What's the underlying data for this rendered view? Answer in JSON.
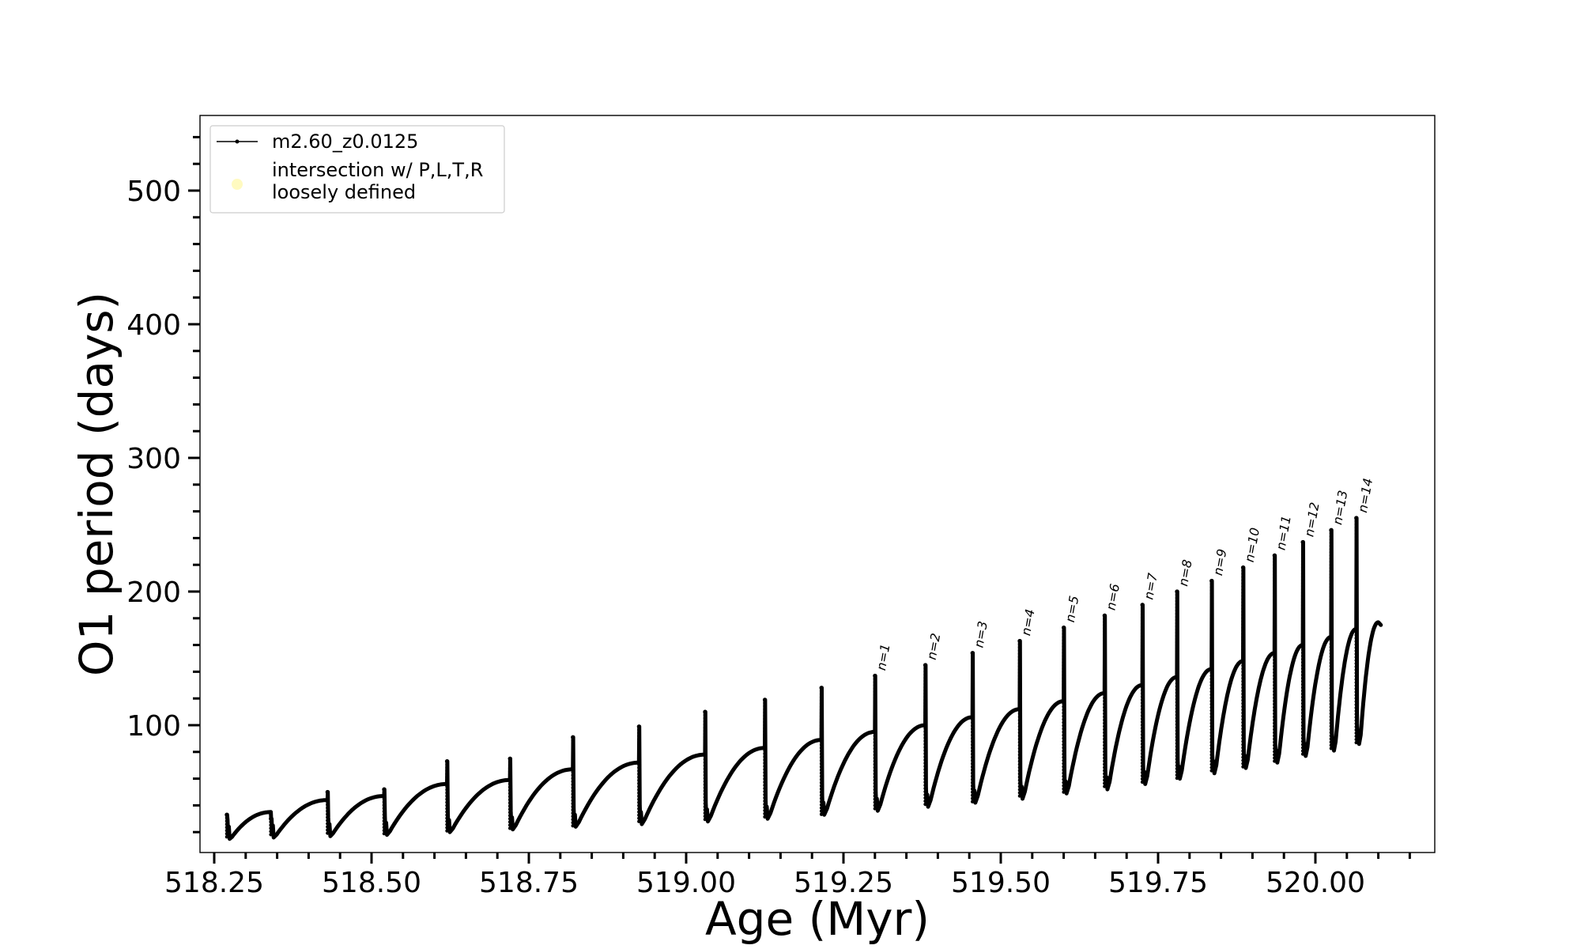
{
  "chart_data": {
    "type": "line",
    "title": "",
    "xlabel": "Age (Myr)",
    "ylabel": "O1 period (days)",
    "xlim": [
      518.2,
      520.17
    ],
    "ylim": [
      10,
      553
    ],
    "x_ticks": [
      518.25,
      518.5,
      518.75,
      519.0,
      519.25,
      519.5,
      519.75,
      520.0
    ],
    "x_tick_labels": [
      "518.25",
      "518.50",
      "518.75",
      "519.00",
      "519.25",
      "519.50",
      "519.75",
      "520.00"
    ],
    "x_minor_step": 0.05,
    "y_ticks": [
      100,
      200,
      300,
      400,
      500
    ],
    "y_tick_labels": [
      "100",
      "200",
      "300",
      "400",
      "500"
    ],
    "y_minor_step": 20,
    "grid": false,
    "legend_position": "top-left",
    "legend": [
      {
        "label": "m2.60_z0.0125",
        "marker": "line-with-dot",
        "color": "#000000"
      },
      {
        "label_lines": [
          "intersection w/ P,L,T,R",
          "loosely defined"
        ],
        "marker": "circle",
        "color": "#fffac0"
      }
    ],
    "series": [
      {
        "name": "m2.60_z0.0125",
        "color": "#000000",
        "cycles": [
          {
            "start": 518.27,
            "end": 518.34,
            "base": 15,
            "spike": 33,
            "plateau": 35,
            "label": ""
          },
          {
            "start": 518.34,
            "end": 518.43,
            "base": 16,
            "spike": 30,
            "plateau": 44,
            "label": ""
          },
          {
            "start": 518.43,
            "end": 518.52,
            "base": 17,
            "spike": 50,
            "plateau": 47,
            "label": ""
          },
          {
            "start": 518.52,
            "end": 518.62,
            "base": 18,
            "spike": 52,
            "plateau": 56,
            "label": ""
          },
          {
            "start": 518.62,
            "end": 518.72,
            "base": 20,
            "spike": 73,
            "plateau": 59,
            "label": ""
          },
          {
            "start": 518.72,
            "end": 518.82,
            "base": 22,
            "spike": 75,
            "plateau": 67,
            "label": ""
          },
          {
            "start": 518.82,
            "end": 518.925,
            "base": 24,
            "spike": 91,
            "plateau": 72,
            "label": ""
          },
          {
            "start": 518.925,
            "end": 519.03,
            "base": 26,
            "spike": 99,
            "plateau": 78,
            "label": ""
          },
          {
            "start": 519.03,
            "end": 519.125,
            "base": 28,
            "spike": 110,
            "plateau": 83,
            "label": ""
          },
          {
            "start": 519.125,
            "end": 519.215,
            "base": 30,
            "spike": 119,
            "plateau": 89,
            "label": ""
          },
          {
            "start": 519.215,
            "end": 519.3,
            "base": 33,
            "spike": 128,
            "plateau": 95,
            "label": ""
          },
          {
            "start": 519.3,
            "end": 519.38,
            "base": 36,
            "spike": 137,
            "plateau": 100,
            "label": "n=1"
          },
          {
            "start": 519.38,
            "end": 519.455,
            "base": 39,
            "spike": 145,
            "plateau": 106,
            "label": "n=2"
          },
          {
            "start": 519.455,
            "end": 519.53,
            "base": 42,
            "spike": 154,
            "plateau": 112,
            "label": "n=3"
          },
          {
            "start": 519.53,
            "end": 519.6,
            "base": 45,
            "spike": 163,
            "plateau": 118,
            "label": "n=4"
          },
          {
            "start": 519.6,
            "end": 519.665,
            "base": 49,
            "spike": 173,
            "plateau": 124,
            "label": "n=5"
          },
          {
            "start": 519.665,
            "end": 519.725,
            "base": 52,
            "spike": 182,
            "plateau": 130,
            "label": "n=6"
          },
          {
            "start": 519.725,
            "end": 519.78,
            "base": 56,
            "spike": 190,
            "plateau": 136,
            "label": "n=7"
          },
          {
            "start": 519.78,
            "end": 519.835,
            "base": 60,
            "spike": 200,
            "plateau": 142,
            "label": "n=8"
          },
          {
            "start": 519.835,
            "end": 519.885,
            "base": 64,
            "spike": 208,
            "plateau": 148,
            "label": "n=9"
          },
          {
            "start": 519.885,
            "end": 519.935,
            "base": 68,
            "spike": 218,
            "plateau": 154,
            "label": "n=10"
          },
          {
            "start": 519.935,
            "end": 519.98,
            "base": 72,
            "spike": 227,
            "plateau": 160,
            "label": "n=11"
          },
          {
            "start": 519.98,
            "end": 520.025,
            "base": 77,
            "spike": 237,
            "plateau": 166,
            "label": "n=12"
          },
          {
            "start": 520.025,
            "end": 520.065,
            "base": 81,
            "spike": 246,
            "plateau": 172,
            "label": "n=13"
          },
          {
            "start": 520.065,
            "end": 520.1,
            "base": 86,
            "spike": 255,
            "plateau": 177,
            "label": "n=14"
          }
        ],
        "final_value": 175
      }
    ]
  }
}
